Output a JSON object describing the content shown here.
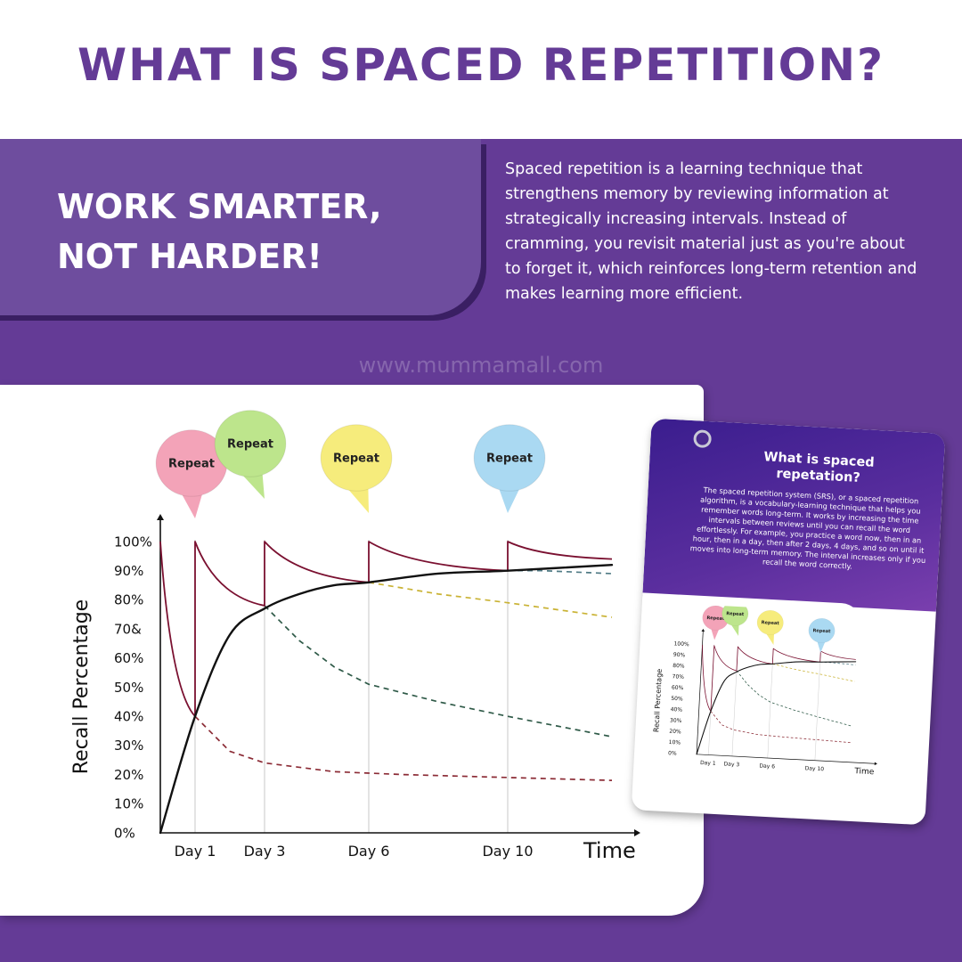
{
  "header": {
    "title": "WHAT IS SPACED REPETITION?"
  },
  "slogan": {
    "line1": "WORK SMARTER,",
    "line2": "NOT HARDER!"
  },
  "description": "Spaced repetition is a learning technique that strengthens memory by reviewing information at strategically increasing intervals. Instead of cramming, you revisit material just as you're about to forget it, which reinforces long-term retention and makes learning more efficient.",
  "watermark": "www.mummamall.com",
  "product_card": {
    "title": "What is spaced repetation?",
    "text": "The spaced repetition system (SRS), or a spaced repetition algorithm, is a vocabulary-learning technique that helps you remember words long-term. It works by increasing the time intervals between reviews until you can recall the word effortlessly. For example, you practice a word now, then in an hour, then in a day, then after 2 days, 4 days, and so on until it moves into long-term memory. The interval increases only if you recall the word correctly."
  },
  "chart_data": {
    "type": "line",
    "xlabel": "Time",
    "ylabel": "Recall Percentage",
    "y_tick_labels": [
      "0%",
      "10%",
      "20%",
      "30%",
      "40%",
      "50%",
      "60%",
      "70&",
      "80%",
      "90%",
      "100%"
    ],
    "small_y_tick_labels": [
      "0%",
      "10%",
      "20%",
      "30%",
      "40%",
      "50%",
      "60%",
      "70%",
      "80%",
      "90%",
      "100%"
    ],
    "ylim": [
      0,
      100
    ],
    "days": [
      "Day 1",
      "Day 3",
      "Day 6",
      "Day 10"
    ],
    "repeat_label": "Repeat",
    "bubble_colors": [
      "#f3a3b8",
      "#bde58c",
      "#f6ec7c",
      "#aad9f2"
    ],
    "review_curve": {
      "color": "#7a1030",
      "points": [
        [
          0,
          100
        ],
        [
          1,
          40
        ],
        [
          1,
          100
        ],
        [
          3,
          78
        ],
        [
          3,
          100
        ],
        [
          6,
          86
        ],
        [
          6,
          100
        ],
        [
          10,
          90
        ],
        [
          10,
          100
        ],
        [
          13,
          94
        ]
      ]
    },
    "retention_curve": {
      "color": "#111111",
      "points": [
        [
          0,
          0
        ],
        [
          1,
          40
        ],
        [
          2,
          68
        ],
        [
          3,
          77
        ],
        [
          4,
          82
        ],
        [
          5,
          85
        ],
        [
          6,
          86
        ],
        [
          8,
          89
        ],
        [
          10,
          90
        ],
        [
          13,
          92
        ]
      ]
    },
    "forgetting_curves": [
      {
        "color": "#8b2b35",
        "points": [
          [
            1,
            40
          ],
          [
            2,
            28
          ],
          [
            3,
            24
          ],
          [
            5,
            21
          ],
          [
            7,
            20
          ],
          [
            10,
            19
          ],
          [
            13,
            18
          ]
        ]
      },
      {
        "color": "#2f5a48",
        "points": [
          [
            3,
            78
          ],
          [
            4,
            66
          ],
          [
            5,
            57
          ],
          [
            6,
            51
          ],
          [
            8,
            45
          ],
          [
            10,
            40
          ],
          [
            13,
            33
          ]
        ]
      },
      {
        "color": "#c9b233",
        "points": [
          [
            6,
            86
          ],
          [
            7,
            84
          ],
          [
            8,
            82
          ],
          [
            10,
            79
          ],
          [
            13,
            74
          ]
        ]
      },
      {
        "color": "#4f7a84",
        "points": [
          [
            10,
            90
          ],
          [
            11,
            90
          ],
          [
            13,
            89
          ]
        ]
      }
    ]
  }
}
